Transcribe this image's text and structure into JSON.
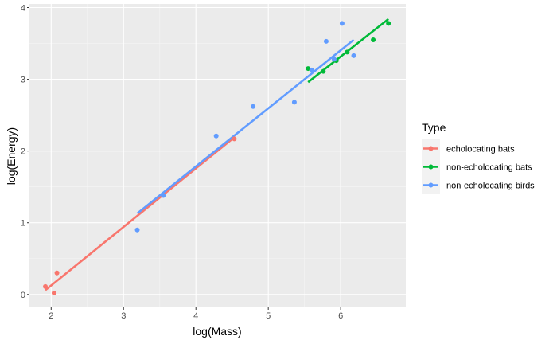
{
  "chart_data": {
    "type": "scatter",
    "title": "",
    "xlabel": "log(Mass)",
    "ylabel": "log(Energy)",
    "xlim": [
      1.7,
      6.9
    ],
    "ylim": [
      -0.18,
      4.05
    ],
    "x_ticks": [
      2,
      3,
      4,
      5,
      6
    ],
    "y_ticks": [
      0,
      1,
      2,
      3,
      4
    ],
    "x_tick_labels": [
      "2",
      "3",
      "4",
      "5",
      "6"
    ],
    "y_tick_labels": [
      "0",
      "1",
      "2",
      "3",
      "4"
    ],
    "grid": true,
    "legend": {
      "title": "Type",
      "position": "right"
    },
    "series": [
      {
        "name": "echolocating bats",
        "color": "#F8766D",
        "points": [
          {
            "x": 1.92,
            "y": 0.11
          },
          {
            "x": 2.04,
            "y": 0.02
          },
          {
            "x": 2.08,
            "y": 0.3
          },
          {
            "x": 4.53,
            "y": 2.17
          }
        ],
        "fit": [
          [
            1.92,
            0.06
          ],
          [
            4.53,
            2.19
          ]
        ]
      },
      {
        "name": "non-echolocating bats",
        "color": "#00BA38",
        "points": [
          {
            "x": 5.55,
            "y": 3.15
          },
          {
            "x": 5.76,
            "y": 3.11
          },
          {
            "x": 5.94,
            "y": 3.26
          },
          {
            "x": 6.09,
            "y": 3.38
          },
          {
            "x": 6.45,
            "y": 3.55
          },
          {
            "x": 6.66,
            "y": 3.78
          }
        ],
        "fit": [
          [
            5.55,
            2.96
          ],
          [
            6.66,
            3.84
          ]
        ]
      },
      {
        "name": "non-echolocating birds",
        "color": "#619CFF",
        "points": [
          {
            "x": 3.19,
            "y": 0.9
          },
          {
            "x": 3.55,
            "y": 1.38
          },
          {
            "x": 4.28,
            "y": 2.21
          },
          {
            "x": 4.79,
            "y": 2.62
          },
          {
            "x": 5.36,
            "y": 2.68
          },
          {
            "x": 5.6,
            "y": 3.13
          },
          {
            "x": 5.8,
            "y": 3.53
          },
          {
            "x": 5.91,
            "y": 3.28
          },
          {
            "x": 6.02,
            "y": 3.78
          },
          {
            "x": 6.18,
            "y": 3.33
          }
        ],
        "fit": [
          [
            3.19,
            1.13
          ],
          [
            6.18,
            3.55
          ]
        ]
      }
    ]
  }
}
